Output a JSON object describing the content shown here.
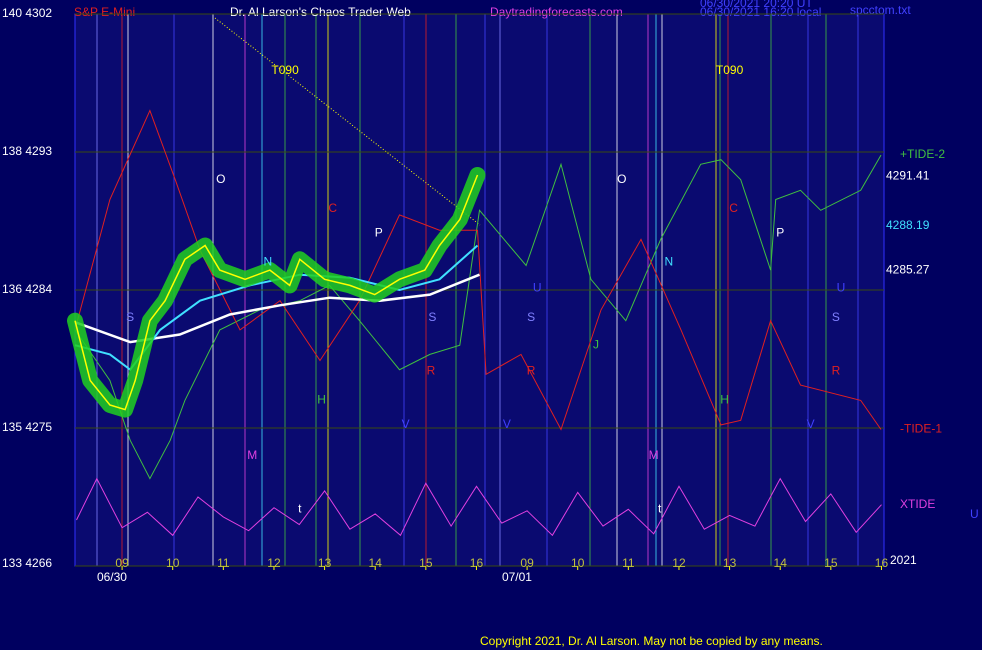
{
  "chart_data": {
    "type": "line",
    "title": "Dr. Al Larson's Chaos Trader Web",
    "symbol": "S&P E-Mini",
    "website": "Daytradingforecasts.com",
    "timestamps": [
      "06/30/2021 20:20 UT",
      "06/30/2021 16:20 local"
    ],
    "file_name": "spcctom.txt",
    "copyright": "Copyright 2021, Dr. Al Larson. May not be copied by any means.",
    "year_label": "2021",
    "corner_label": "U",
    "xlim": [
      -0.93,
      15.05
    ],
    "xticks": [
      {
        "value": 0,
        "label": "09"
      },
      {
        "value": 1,
        "label": "10"
      },
      {
        "value": 2,
        "label": "11"
      },
      {
        "value": 3,
        "label": "12"
      },
      {
        "value": 4,
        "label": "13"
      },
      {
        "value": 5,
        "label": "14"
      },
      {
        "value": 6,
        "label": "15"
      },
      {
        "value": 7,
        "label": "16"
      },
      {
        "value": 8,
        "label": "09"
      },
      {
        "value": 9,
        "label": "10"
      },
      {
        "value": 10,
        "label": "11"
      },
      {
        "value": 11,
        "label": "12"
      },
      {
        "value": 12,
        "label": "13"
      },
      {
        "value": 13,
        "label": "14"
      },
      {
        "value": 14,
        "label": "15"
      },
      {
        "value": 15,
        "label": "16"
      }
    ],
    "date_labels": [
      {
        "value": -0.2,
        "label": "06/30"
      },
      {
        "value": 7.8,
        "label": "07/01"
      }
    ],
    "ylim": [
      4266,
      4302
    ],
    "yticks": [
      {
        "value": 4266,
        "label": "133 4266"
      },
      {
        "value": 4275,
        "label": "135 4275"
      },
      {
        "value": 4284,
        "label": "136 4284"
      },
      {
        "value": 4293,
        "label": "138 4293"
      },
      {
        "value": 4302,
        "label": "140 4302"
      }
    ],
    "grid": true,
    "price_levels": [
      {
        "value": 4291.41,
        "color": "#ffffff"
      },
      {
        "value": 4288.19,
        "color": "#40e0ff"
      },
      {
        "value": 4285.27,
        "color": "#ffffff"
      }
    ],
    "series": [
      {
        "name": "+TIDE-2",
        "color": "#40c040",
        "width": 1,
        "x": [
          -0.93,
          -0.24,
          0.16,
          0.55,
          0.95,
          1.24,
          1.93,
          2.72,
          3.51,
          4.1,
          4.69,
          5.48,
          6.08,
          6.67,
          7.06,
          7.98,
          8.67,
          9.26,
          9.95,
          10.64,
          11.43,
          11.83,
          12.22,
          12.81,
          12.91,
          13.4,
          13.8,
          14.59,
          14.99
        ],
        "values": [
          4281.4,
          4278.1,
          4274.2,
          4271.7,
          4274.2,
          4276.8,
          4281.4,
          4282.7,
          4283.3,
          4284.3,
          4282.0,
          4278.8,
          4279.8,
          4280.4,
          4289.2,
          4285.6,
          4292.2,
          4284.7,
          4282.0,
          4287.3,
          4292.2,
          4292.5,
          4291.2,
          4285.3,
          4289.9,
          4290.5,
          4289.2,
          4290.5,
          4292.8
        ]
      },
      {
        "name": "-TIDE-1",
        "color": "#e02020",
        "width": 1,
        "x": [
          -0.93,
          -0.24,
          0.55,
          1.05,
          1.54,
          2.33,
          3.12,
          3.91,
          4.69,
          5.48,
          6.27,
          7.02,
          7.19,
          7.88,
          8.67,
          9.46,
          10.25,
          11.04,
          11.83,
          12.22,
          12.81,
          13.4,
          14.59,
          14.99
        ],
        "values": [
          4281.4,
          4289.9,
          4295.7,
          4291.2,
          4286.6,
          4281.4,
          4283.3,
          4279.4,
          4283.3,
          4288.9,
          4287.9,
          4287.9,
          4278.5,
          4279.8,
          4274.9,
          4282.7,
          4287.3,
          4281.4,
          4275.2,
          4275.5,
          4282.0,
          4277.8,
          4276.8,
          4274.9
        ]
      },
      {
        "name": "XTIDE",
        "color": "#e040e0",
        "width": 1,
        "x": [
          -0.9,
          -0.5,
          0,
          0.5,
          1,
          1.5,
          2,
          2.5,
          3,
          3.5,
          4,
          4.5,
          5,
          5.5,
          6,
          6.5,
          7,
          7.5,
          8,
          8.5,
          9,
          9.5,
          10,
          10.5,
          11,
          11.5,
          12,
          12.5,
          13,
          13.5,
          14,
          14.5,
          15
        ],
        "values": [
          4269.0,
          4271.7,
          4268.5,
          4269.5,
          4268.0,
          4270.5,
          4269.2,
          4268.3,
          4269.8,
          4268.7,
          4270.9,
          4268.4,
          4269.4,
          4268.0,
          4271.4,
          4268.6,
          4271.2,
          4268.8,
          4269.6,
          4268.0,
          4270.8,
          4268.6,
          4269.7,
          4268.1,
          4271.2,
          4268.4,
          4269.3,
          4268.6,
          4271.7,
          4268.9,
          4270.7,
          4268.2,
          4270.0
        ]
      },
      {
        "color": "#ffffff",
        "width": 2.5,
        "x": [
          -0.93,
          0.16,
          1.14,
          2.13,
          3.12,
          4.1,
          5.09,
          6.08,
          7.06
        ],
        "values": [
          4281.9,
          4280.6,
          4281.1,
          4282.4,
          4283.0,
          4283.5,
          4283.3,
          4283.7,
          4285.0
        ]
      },
      {
        "color": "#40e0ff",
        "width": 2,
        "x": [
          -0.93,
          -0.24,
          0.16,
          0.75,
          1.54,
          2.52,
          3.51,
          4.5,
          5.48,
          6.27,
          7.02
        ],
        "values": [
          4280.4,
          4279.8,
          4278.8,
          4281.4,
          4283.3,
          4284.3,
          4285.0,
          4284.8,
          4284.0,
          4284.7,
          4286.9
        ]
      },
      {
        "color": "#ffff00",
        "width": 1.5,
        "glow": "#20d020",
        "x": [
          -0.93,
          -0.63,
          -0.24,
          0.06,
          0.26,
          0.55,
          0.85,
          1.24,
          1.64,
          1.93,
          2.43,
          2.92,
          3.31,
          3.51,
          4.0,
          4.5,
          4.99,
          5.48,
          5.98,
          6.27,
          6.67,
          7.02
        ],
        "values": [
          4282.0,
          4278.1,
          4276.5,
          4276.2,
          4278.1,
          4282.0,
          4283.3,
          4286.0,
          4286.9,
          4285.3,
          4284.7,
          4285.3,
          4284.3,
          4286.0,
          4284.7,
          4284.3,
          4283.7,
          4284.7,
          4285.3,
          4286.9,
          4288.6,
          4291.5
        ]
      }
    ],
    "annotations": [
      {
        "text": "T090",
        "x": 3.22,
        "y": 4298.3,
        "color": "#ffff00"
      },
      {
        "text": "T090",
        "x": 12.0,
        "y": 4298.3,
        "color": "#ffff00"
      },
      {
        "text": "O",
        "x": 1.95,
        "y": 4291.2,
        "color": "#ffffff"
      },
      {
        "text": "O",
        "x": 9.87,
        "y": 4291.2,
        "color": "#ffffff"
      },
      {
        "text": "C",
        "x": 4.16,
        "y": 4289.3,
        "color": "#e02020"
      },
      {
        "text": "C",
        "x": 12.08,
        "y": 4289.3,
        "color": "#e02020"
      },
      {
        "text": "P",
        "x": 5.07,
        "y": 4287.7,
        "color": "#ffffff"
      },
      {
        "text": "P",
        "x": 13.0,
        "y": 4287.7,
        "color": "#ffffff"
      },
      {
        "text": "N",
        "x": 2.88,
        "y": 4285.8,
        "color": "#40e0ff"
      },
      {
        "text": "N",
        "x": 10.8,
        "y": 4285.8,
        "color": "#40e0ff"
      },
      {
        "text": "S",
        "x": 0.16,
        "y": 4282.2,
        "color": "#8080ff"
      },
      {
        "text": "S",
        "x": 6.13,
        "y": 4282.2,
        "color": "#8080ff"
      },
      {
        "text": "S",
        "x": 8.08,
        "y": 4282.2,
        "color": "#8080ff"
      },
      {
        "text": "S",
        "x": 14.1,
        "y": 4282.2,
        "color": "#8080ff"
      },
      {
        "text": "U",
        "x": 8.2,
        "y": 4284.1,
        "color": "#4040ff"
      },
      {
        "text": "U",
        "x": 14.2,
        "y": 4284.1,
        "color": "#4040ff"
      },
      {
        "text": "H",
        "x": 3.94,
        "y": 4276.8,
        "color": "#40c040"
      },
      {
        "text": "H",
        "x": 11.9,
        "y": 4276.8,
        "color": "#40c040"
      },
      {
        "text": "M",
        "x": 2.57,
        "y": 4273.2,
        "color": "#e040e0"
      },
      {
        "text": "M",
        "x": 10.5,
        "y": 4273.2,
        "color": "#e040e0"
      },
      {
        "text": "V",
        "x": 5.6,
        "y": 4275.2,
        "color": "#4040ff"
      },
      {
        "text": "V",
        "x": 7.6,
        "y": 4275.2,
        "color": "#4040ff"
      },
      {
        "text": "V",
        "x": 13.6,
        "y": 4275.2,
        "color": "#4040ff"
      },
      {
        "text": "R",
        "x": 6.1,
        "y": 4278.7,
        "color": "#e02020"
      },
      {
        "text": "R",
        "x": 8.08,
        "y": 4278.7,
        "color": "#e02020"
      },
      {
        "text": "R",
        "x": 14.1,
        "y": 4278.7,
        "color": "#e02020"
      },
      {
        "text": "J",
        "x": 9.36,
        "y": 4280.4,
        "color": "#40c040"
      },
      {
        "text": "t",
        "x": 3.51,
        "y": 4269.7,
        "color": "#ffffff"
      },
      {
        "text": "t",
        "x": 10.62,
        "y": 4269.7,
        "color": "#ffffff"
      }
    ]
  }
}
